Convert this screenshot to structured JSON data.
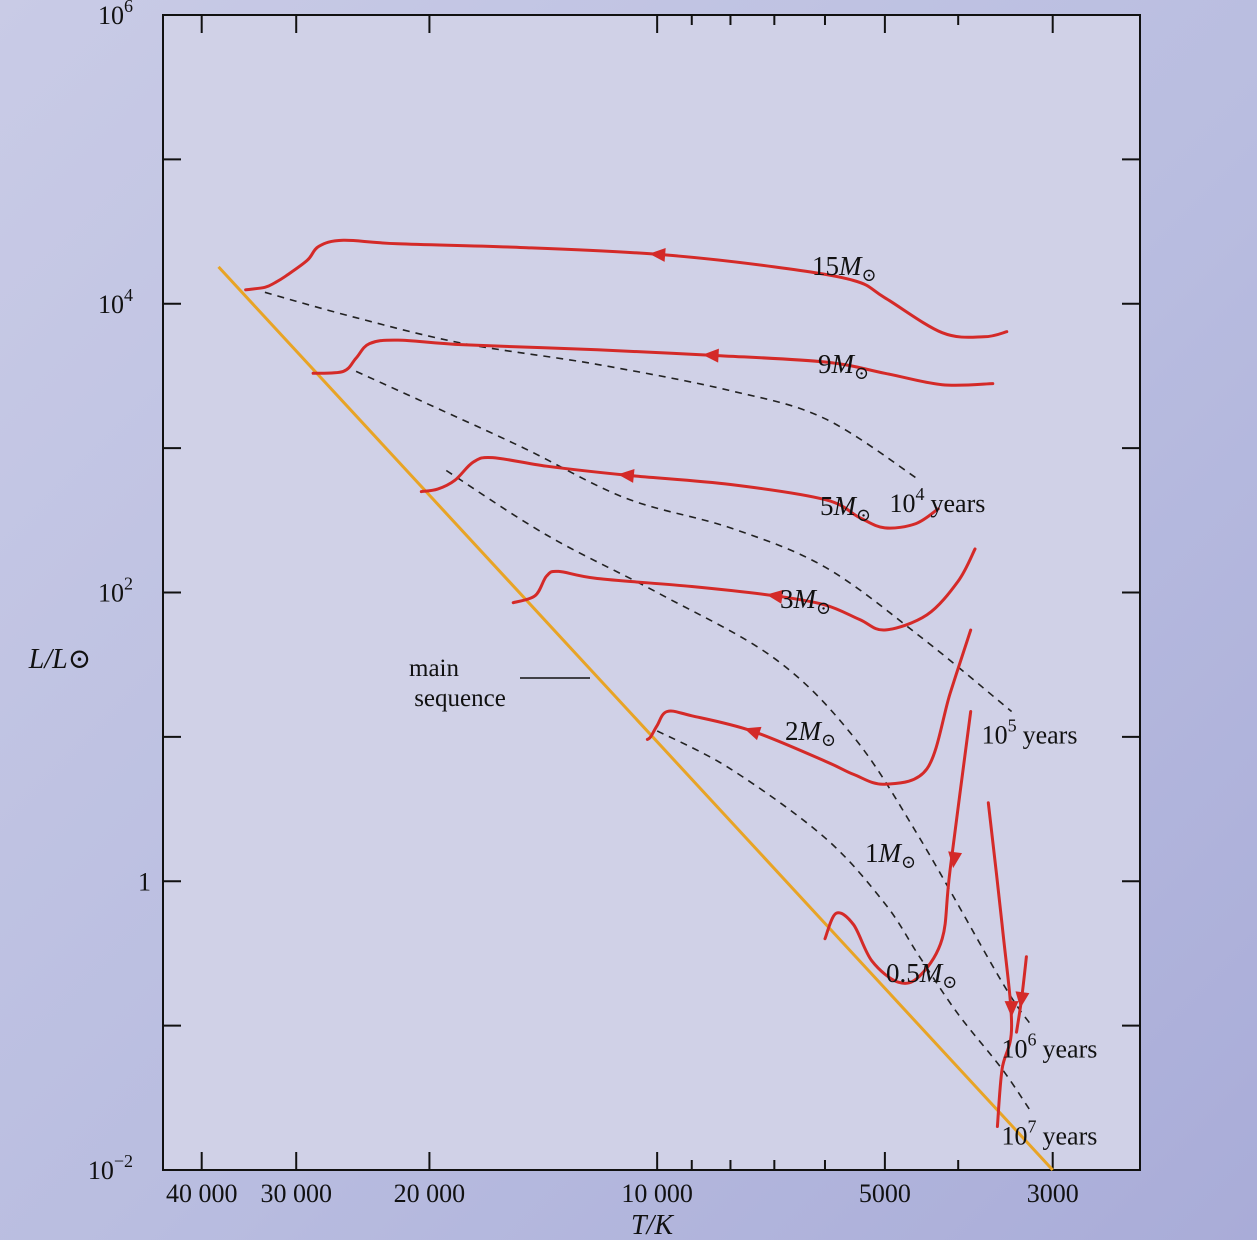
{
  "chart_data": {
    "type": "line",
    "title": "",
    "xlabel": "T/K",
    "ylabel": "L/L⊙",
    "xscale": "log-reversed",
    "yscale": "log",
    "xlim": [
      45000,
      2300
    ],
    "ylim": [
      0.01,
      1000000
    ],
    "grid": false,
    "x_ticks": [
      {
        "value": 40000,
        "label": "40 000"
      },
      {
        "value": 30000,
        "label": "30 000"
      },
      {
        "value": 20000,
        "label": "20 000"
      },
      {
        "value": 10000,
        "label": "10 000"
      },
      {
        "value": 5000,
        "label": "5000"
      },
      {
        "value": 3000,
        "label": "3000"
      }
    ],
    "x_minor_ticks": [
      9000,
      8000,
      7000,
      6000,
      4000
    ],
    "y_ticks": [
      {
        "value": 0.01,
        "base": "10",
        "exp": "−2"
      },
      {
        "value": 1,
        "base": "1",
        "exp": ""
      },
      {
        "value": 100,
        "base": "10",
        "exp": "2"
      },
      {
        "value": 10000,
        "base": "10",
        "exp": "4"
      },
      {
        "value": 1000000,
        "base": "10",
        "exp": "6"
      }
    ],
    "y_minor_ticks": [
      0.1,
      10,
      1000,
      100000
    ],
    "main_sequence": {
      "label_line1": "main",
      "label_line2": "sequence",
      "points": [
        [
          38000,
          18000
        ],
        [
          3000,
          0.01
        ]
      ]
    },
    "tracks": [
      {
        "mass_label": "15",
        "points": [
          [
            3450,
            6400
          ],
          [
            3700,
            5900
          ],
          [
            4200,
            6300
          ],
          [
            5000,
            11000
          ],
          [
            5500,
            14500
          ],
          [
            7000,
            18000
          ],
          [
            10000,
            22000
          ],
          [
            15000,
            24500
          ],
          [
            22000,
            26000
          ],
          [
            26000,
            27500
          ],
          [
            28000,
            25000
          ],
          [
            29000,
            20000
          ],
          [
            31000,
            15500
          ],
          [
            32000,
            14000
          ],
          [
            33000,
            13000
          ],
          [
            35000,
            12500
          ]
        ],
        "arrow_at": [
          10000,
          22000
        ]
      },
      {
        "mass_label": "9",
        "points": [
          [
            3600,
            2800
          ],
          [
            4200,
            2750
          ],
          [
            5000,
            3300
          ],
          [
            6000,
            3950
          ],
          [
            8500,
            4400
          ],
          [
            12000,
            4800
          ],
          [
            18000,
            5200
          ],
          [
            22000,
            5600
          ],
          [
            24000,
            5300
          ],
          [
            25000,
            4200
          ],
          [
            26000,
            3400
          ],
          [
            28500,
            3300
          ]
        ],
        "arrow_at": [
          8500,
          4400
        ]
      },
      {
        "mass_label": "5",
        "points": [
          [
            4250,
            380
          ],
          [
            4550,
            300
          ],
          [
            5000,
            280
          ],
          [
            5400,
            330
          ],
          [
            6000,
            440
          ],
          [
            8000,
            560
          ],
          [
            11000,
            650
          ],
          [
            14000,
            750
          ],
          [
            16500,
            860
          ],
          [
            17500,
            800
          ],
          [
            18500,
            600
          ],
          [
            19500,
            520
          ],
          [
            20500,
            500
          ]
        ],
        "arrow_at": [
          11000,
          650
        ]
      },
      {
        "mass_label": "3",
        "points": [
          [
            3800,
            200
          ],
          [
            4000,
            120
          ],
          [
            4400,
            70
          ],
          [
            5000,
            55
          ],
          [
            5400,
            65
          ],
          [
            6000,
            82
          ],
          [
            7000,
            95
          ],
          [
            9000,
            110
          ],
          [
            12000,
            125
          ],
          [
            13500,
            140
          ],
          [
            14000,
            130
          ],
          [
            14500,
            95
          ],
          [
            15500,
            85
          ]
        ],
        "arrow_at": [
          7000,
          95
        ]
      },
      {
        "mass_label": "2",
        "points": [
          [
            3850,
            55
          ],
          [
            4100,
            20
          ],
          [
            4400,
            6
          ],
          [
            5000,
            4.7
          ],
          [
            5500,
            5.5
          ],
          [
            6000,
            6.8
          ],
          [
            7500,
            11
          ],
          [
            9000,
            14
          ],
          [
            9700,
            15
          ],
          [
            10000,
            12
          ],
          [
            10200,
            10
          ],
          [
            10300,
            9.6
          ]
        ],
        "arrow_at": [
          7500,
          11
        ]
      },
      {
        "mass_label": "1",
        "points": [
          [
            3850,
            15
          ],
          [
            4100,
            1.2
          ],
          [
            4200,
            0.4
          ],
          [
            4500,
            0.22
          ],
          [
            4800,
            0.2
          ],
          [
            5200,
            0.28
          ],
          [
            5500,
            0.5
          ],
          [
            5800,
            0.6
          ],
          [
            6000,
            0.4
          ]
        ],
        "arrow_at": [
          4050,
          1.4
        ]
      },
      {
        "mass_label": "0.5",
        "points": [
          [
            3650,
            3.5
          ],
          [
            3500,
            0.5
          ],
          [
            3400,
            0.1
          ],
          [
            3500,
            0.05
          ],
          [
            3550,
            0.02
          ]
        ],
        "arrow_at": [
          3400,
          0.13
        ]
      },
      {
        "mass_label": "",
        "points": [
          [
            3250,
            0.3
          ],
          [
            3300,
            0.15
          ],
          [
            3350,
            0.09
          ]
        ],
        "arrow_at": [
          3300,
          0.15
        ]
      }
    ],
    "isochrones": [
      {
        "label_base": "10",
        "label_exp": "4",
        "label_unit": "years",
        "points": [
          [
            33000,
            12000
          ],
          [
            25000,
            8000
          ],
          [
            18000,
            5300
          ],
          [
            12000,
            3800
          ],
          [
            8000,
            2500
          ],
          [
            6000,
            1600
          ],
          [
            4500,
            600
          ]
        ]
      },
      {
        "label_base": "10",
        "label_exp": "5",
        "label_unit": "years",
        "points": [
          [
            25000,
            3400
          ],
          [
            20000,
            2000
          ],
          [
            15000,
            1000
          ],
          [
            11000,
            450
          ],
          [
            8000,
            280
          ],
          [
            6000,
            150
          ],
          [
            4500,
            50
          ],
          [
            3400,
            15
          ]
        ]
      },
      {
        "label_base": "10",
        "label_exp": "6",
        "label_unit": "years",
        "points": [
          [
            19000,
            700
          ],
          [
            14000,
            250
          ],
          [
            10000,
            100
          ],
          [
            7000,
            35
          ],
          [
            5500,
            10
          ],
          [
            4500,
            2
          ],
          [
            3500,
            0.2
          ],
          [
            3200,
            0.1
          ]
        ]
      },
      {
        "label_base": "10",
        "label_exp": "7",
        "label_unit": "years",
        "points": [
          [
            10000,
            11
          ],
          [
            8000,
            6
          ],
          [
            6000,
            2
          ],
          [
            5000,
            0.7
          ],
          [
            4500,
            0.3
          ],
          [
            4000,
            0.12
          ],
          [
            3500,
            0.05
          ],
          [
            3200,
            0.025
          ]
        ]
      }
    ],
    "colors": {
      "track": "#d42a28",
      "main_sequence": "#e8a425",
      "isochrone": "#222222",
      "plot_background": "#d0d1e7",
      "axis": "#111111"
    }
  }
}
